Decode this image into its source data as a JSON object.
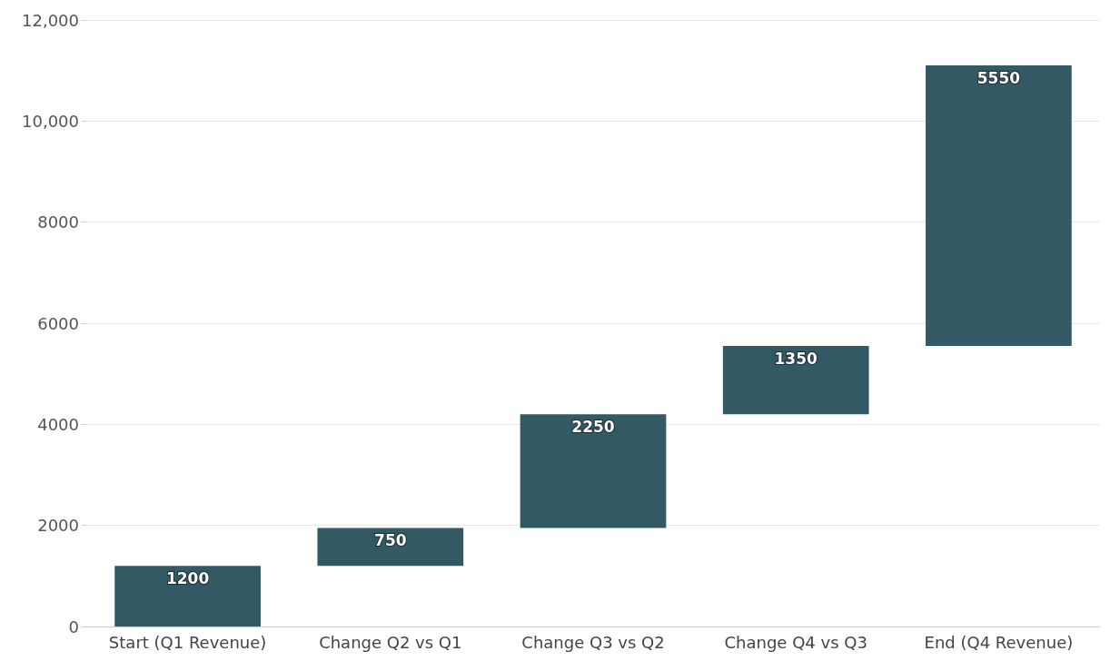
{
  "chart_data": {
    "type": "bar",
    "categories": [
      "Start (Q1 Revenue)",
      "Change Q2 vs Q1",
      "Change Q3 vs Q2",
      "Change Q4 vs Q3",
      "End (Q4 Revenue)"
    ],
    "values": [
      1200,
      750,
      2250,
      1350,
      5550
    ],
    "base": [
      0,
      1200,
      1950,
      4200,
      5550
    ],
    "color": "#335a64",
    "data_labels": true,
    "ylim": [
      0,
      12000
    ],
    "yticks": [
      0,
      2000,
      4000,
      6000,
      8000,
      {
        "value": 10000,
        "label": "10,000"
      },
      {
        "value": 12000,
        "label": "12,000"
      }
    ],
    "grid": "y"
  }
}
